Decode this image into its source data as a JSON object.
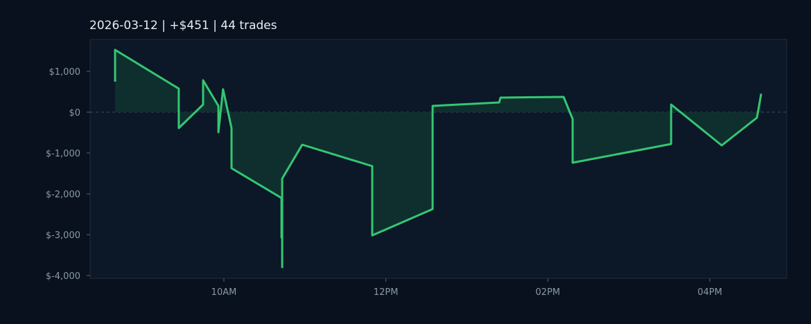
{
  "chart_data": {
    "type": "area-line",
    "title": "2026-03-12  |  +$451  |  44 trades",
    "x": [
      8.656,
      8.656,
      9.443,
      9.443,
      9.743,
      9.743,
      9.932,
      9.932,
      9.99,
      10.094,
      10.094,
      10.711,
      10.711,
      10.72,
      10.72,
      10.72,
      10.967,
      11.832,
      11.832,
      12.577,
      12.577,
      13.399,
      13.416,
      14.195,
      14.306,
      14.306,
      15.522,
      15.522,
      16.147,
      16.582,
      16.634
    ],
    "series": [
      {
        "color": "#34c772",
        "fill": "#0f3230",
        "values": [
          746,
          1525,
          576,
          -390,
          186,
          780,
          153,
          -492,
          559,
          -390,
          -1373,
          -2102,
          -3068,
          -2200,
          -3797,
          -1627,
          -797,
          -1322,
          -3017,
          -2373,
          153,
          237,
          356,
          373,
          -169,
          -1237,
          -780,
          186,
          -814,
          -136,
          451
        ]
      }
    ],
    "xlim": [
      8.348,
      16.95
    ],
    "xticks": [
      {
        "value": 10,
        "label": "10AM"
      },
      {
        "value": 12,
        "label": "12PM"
      },
      {
        "value": 14,
        "label": "02PM"
      },
      {
        "value": 16,
        "label": "04PM"
      }
    ],
    "ylim": [
      -4068,
      1780
    ],
    "yticks": [
      {
        "value": 1000,
        "label": "$1,000"
      },
      {
        "value": 0,
        "label": "$0"
      },
      {
        "value": -1000,
        "label": "$-1,000"
      },
      {
        "value": -2000,
        "label": "$-2,000"
      },
      {
        "value": -3000,
        "label": "$-3,000"
      },
      {
        "value": -4000,
        "label": "$-4,000"
      }
    ]
  }
}
